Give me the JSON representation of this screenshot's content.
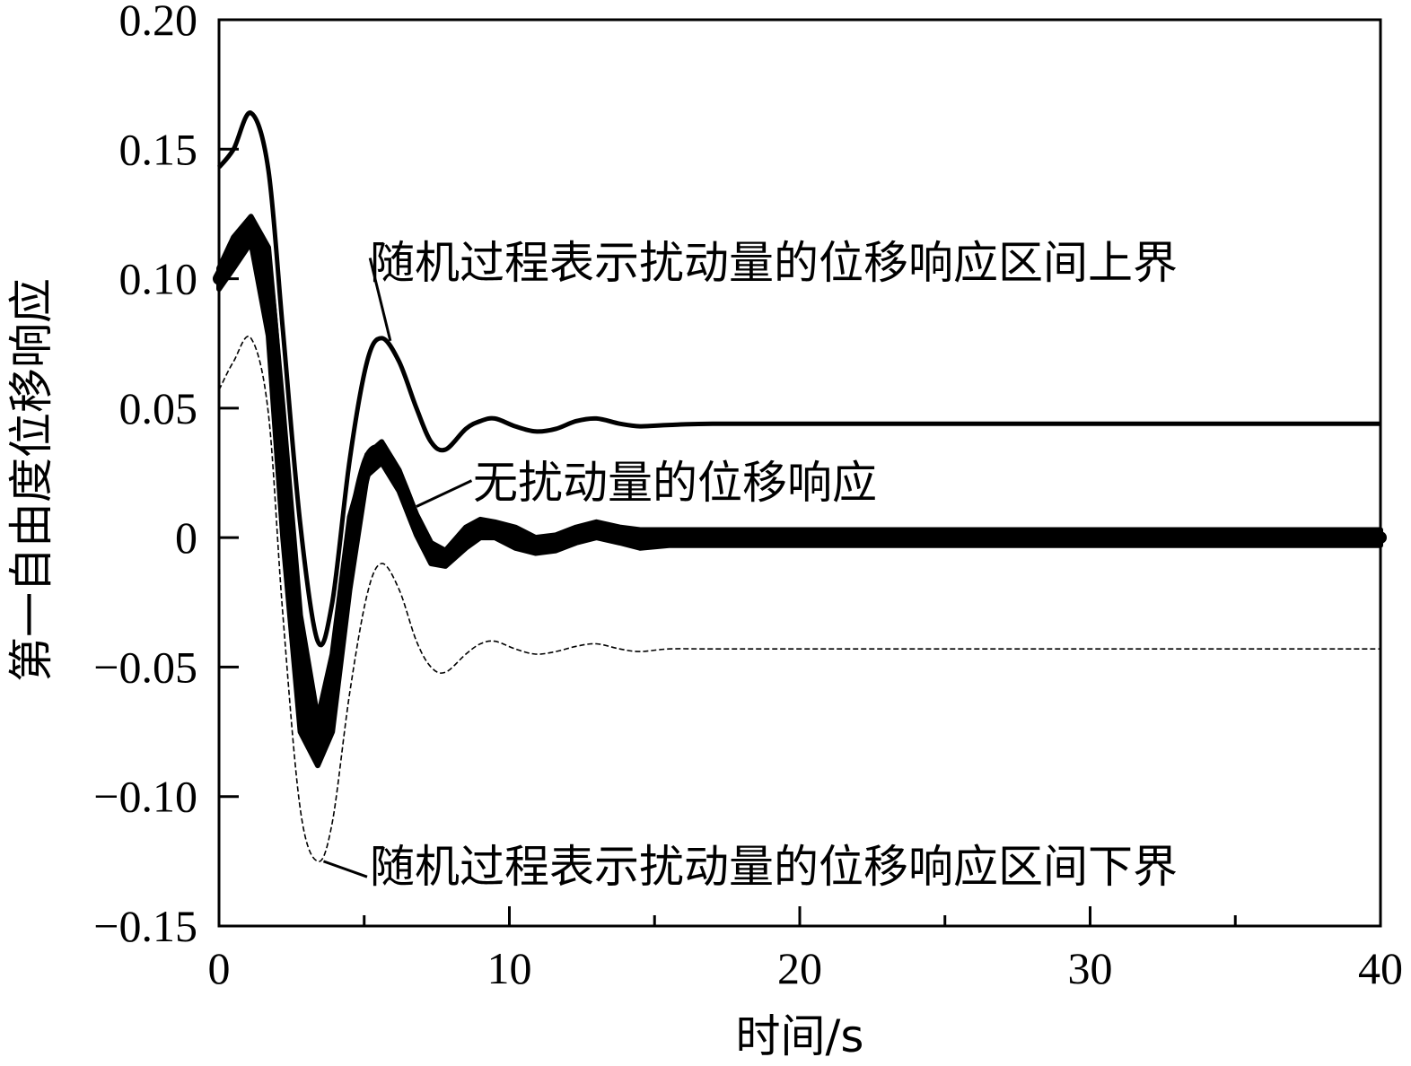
{
  "chart_data": {
    "type": "line",
    "xlabel": "时间/s",
    "ylabel": "第一自由度位移响应",
    "xlim": [
      0,
      40
    ],
    "ylim": [
      -0.15,
      0.2
    ],
    "xticks": [
      0,
      10,
      20,
      30,
      40
    ],
    "xtick_labels": [
      "0",
      "10",
      "20",
      "30",
      "40"
    ],
    "yticks": [
      0.2,
      0.15,
      0.1,
      0.05,
      0,
      -0.05,
      -0.1,
      -0.15
    ],
    "ytick_labels": [
      "0.20",
      "0.15",
      "0.10",
      "0.05",
      "0",
      "−0.05",
      "−0.10",
      "−0.15"
    ],
    "grid": false,
    "series": [
      {
        "name": "随机过程表示扰动量的位移响应区间上界",
        "style": "solid",
        "x": [
          0,
          0.5,
          1.1,
          1.7,
          2.2,
          2.8,
          3.4,
          3.9,
          4.5,
          5.1,
          5.6,
          6.2,
          6.8,
          7.3,
          7.8,
          8.5,
          9.0,
          9.5,
          10.2,
          10.9,
          11.6,
          12.3,
          13.0,
          13.8,
          14.5,
          15.5,
          17.0,
          20.0,
          25.0,
          30.0,
          35.0,
          40.0
        ],
        "y": [
          0.143,
          0.15,
          0.164,
          0.142,
          0.08,
          0.005,
          -0.04,
          -0.025,
          0.03,
          0.068,
          0.077,
          0.068,
          0.05,
          0.037,
          0.034,
          0.042,
          0.045,
          0.046,
          0.043,
          0.041,
          0.042,
          0.045,
          0.046,
          0.044,
          0.043,
          0.0435,
          0.044,
          0.044,
          0.044,
          0.044,
          0.044,
          0.044
        ]
      },
      {
        "name": "无扰动量的位移响应",
        "style": "band",
        "x": [
          0,
          0.5,
          1.1,
          1.7,
          2.2,
          2.8,
          3.4,
          3.9,
          4.5,
          5.1,
          5.6,
          6.2,
          6.8,
          7.3,
          7.8,
          8.5,
          9.0,
          9.5,
          10.2,
          10.9,
          11.6,
          12.3,
          13.0,
          13.8,
          14.5,
          15.5,
          17.0,
          20.0,
          25.0,
          30.0,
          35.0,
          40.0
        ],
        "y": [
          0.1,
          0.11,
          0.119,
          0.095,
          0.025,
          -0.055,
          -0.082,
          -0.06,
          -0.005,
          0.028,
          0.033,
          0.022,
          0.005,
          -0.006,
          -0.008,
          0.0,
          0.004,
          0.003,
          0.0,
          -0.003,
          -0.002,
          0.001,
          0.003,
          0.001,
          -0.001,
          0.0,
          0.0,
          0.0,
          0.0,
          0.0,
          0.0,
          0.0
        ],
        "y_upper": [
          0.104,
          0.116,
          0.124,
          0.112,
          0.05,
          -0.03,
          -0.07,
          -0.045,
          0.008,
          0.032,
          0.037,
          0.026,
          0.009,
          -0.002,
          -0.005,
          0.004,
          0.007,
          0.006,
          0.004,
          0.0,
          0.001,
          0.004,
          0.006,
          0.004,
          0.003,
          0.003,
          0.003,
          0.003,
          0.003,
          0.003,
          0.003,
          0.003
        ],
        "y_lower": [
          0.096,
          0.104,
          0.114,
          0.078,
          0.0,
          -0.075,
          -0.088,
          -0.075,
          -0.02,
          0.024,
          0.029,
          0.018,
          0.001,
          -0.01,
          -0.011,
          -0.004,
          0.0,
          0.0,
          -0.004,
          -0.006,
          -0.005,
          -0.002,
          0.0,
          -0.002,
          -0.004,
          -0.003,
          -0.003,
          -0.003,
          -0.003,
          -0.003,
          -0.003,
          -0.003
        ]
      },
      {
        "name": "随机过程表示扰动量的位移响应区间下界",
        "style": "dashed",
        "x": [
          0,
          0.5,
          1.1,
          1.7,
          2.2,
          2.8,
          3.4,
          3.9,
          4.5,
          5.1,
          5.6,
          6.2,
          6.8,
          7.3,
          7.8,
          8.5,
          9.0,
          9.5,
          10.2,
          10.9,
          11.6,
          12.3,
          13.0,
          13.8,
          14.5,
          15.5,
          17.0,
          20.0,
          25.0,
          30.0,
          35.0,
          40.0
        ],
        "y": [
          0.057,
          0.068,
          0.077,
          0.048,
          -0.03,
          -0.105,
          -0.125,
          -0.11,
          -0.06,
          -0.022,
          -0.01,
          -0.02,
          -0.04,
          -0.05,
          -0.052,
          -0.045,
          -0.041,
          -0.04,
          -0.043,
          -0.045,
          -0.044,
          -0.042,
          -0.041,
          -0.043,
          -0.044,
          -0.043,
          -0.043,
          -0.043,
          -0.043,
          -0.043,
          -0.043,
          -0.043
        ]
      }
    ],
    "annotations": [
      {
        "text": "随机过程表示扰动量的位移响应区间上界",
        "arrow_to": [
          5.9,
          0.076
        ],
        "text_at": [
          5.2,
          0.108
        ]
      },
      {
        "text": "无扰动量的位移响应",
        "arrow_to": [
          6.8,
          0.012
        ],
        "text_at": [
          8.7,
          0.022
        ]
      },
      {
        "text": "随机过程表示扰动量的位移响应区间下界",
        "arrow_to": [
          3.6,
          -0.125
        ],
        "text_at": [
          5.1,
          -0.131
        ]
      }
    ]
  }
}
